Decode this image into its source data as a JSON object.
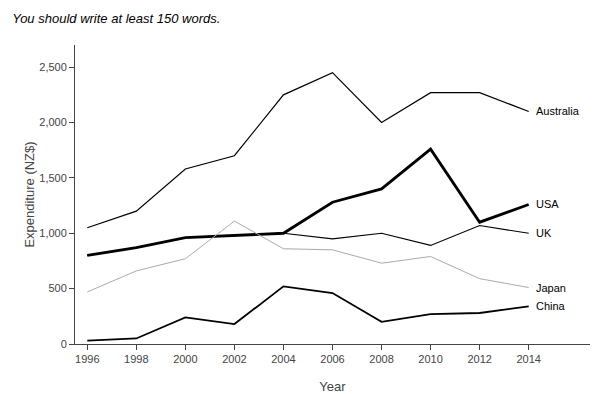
{
  "chart_data": {
    "type": "line",
    "title": "You should write at least 150 words.",
    "xlabel": "Year",
    "ylabel": "Expenditure (NZ$)",
    "x": [
      1996,
      1998,
      2000,
      2002,
      2004,
      2006,
      2008,
      2010,
      2012,
      2014
    ],
    "series": [
      {
        "name": "Australia",
        "color": "#000000",
        "values": [
          1050,
          1200,
          1580,
          1700,
          2250,
          2450,
          2000,
          2270,
          2270,
          2100
        ]
      },
      {
        "name": "USA",
        "color": "#000000",
        "values": [
          800,
          870,
          960,
          980,
          1000,
          1280,
          1400,
          1760,
          1100,
          1260
        ]
      },
      {
        "name": "UK",
        "color": "#000000",
        "values": [
          800,
          870,
          960,
          980,
          1000,
          950,
          1000,
          890,
          1070,
          1000
        ]
      },
      {
        "name": "Japan",
        "color": "#aaaaaa",
        "values": [
          470,
          660,
          770,
          1110,
          860,
          850,
          730,
          790,
          590,
          510
        ]
      },
      {
        "name": "China",
        "color": "#000000",
        "values": [
          30,
          50,
          240,
          180,
          520,
          460,
          200,
          270,
          280,
          340
        ]
      }
    ],
    "xlim": [
      1995.5,
      2016.5
    ],
    "xticks": [
      1996,
      1998,
      2000,
      2002,
      2004,
      2006,
      2008,
      2010,
      2012,
      2014
    ],
    "ylim": [
      0,
      2700
    ],
    "yticks": [
      0,
      500,
      {
        "value": 1000,
        "label": "1,000"
      },
      {
        "value": 1500,
        "label": "1,500"
      },
      {
        "value": 2000,
        "label": "2,000"
      },
      {
        "value": 2500,
        "label": "2,500"
      }
    ],
    "grid": false
  }
}
